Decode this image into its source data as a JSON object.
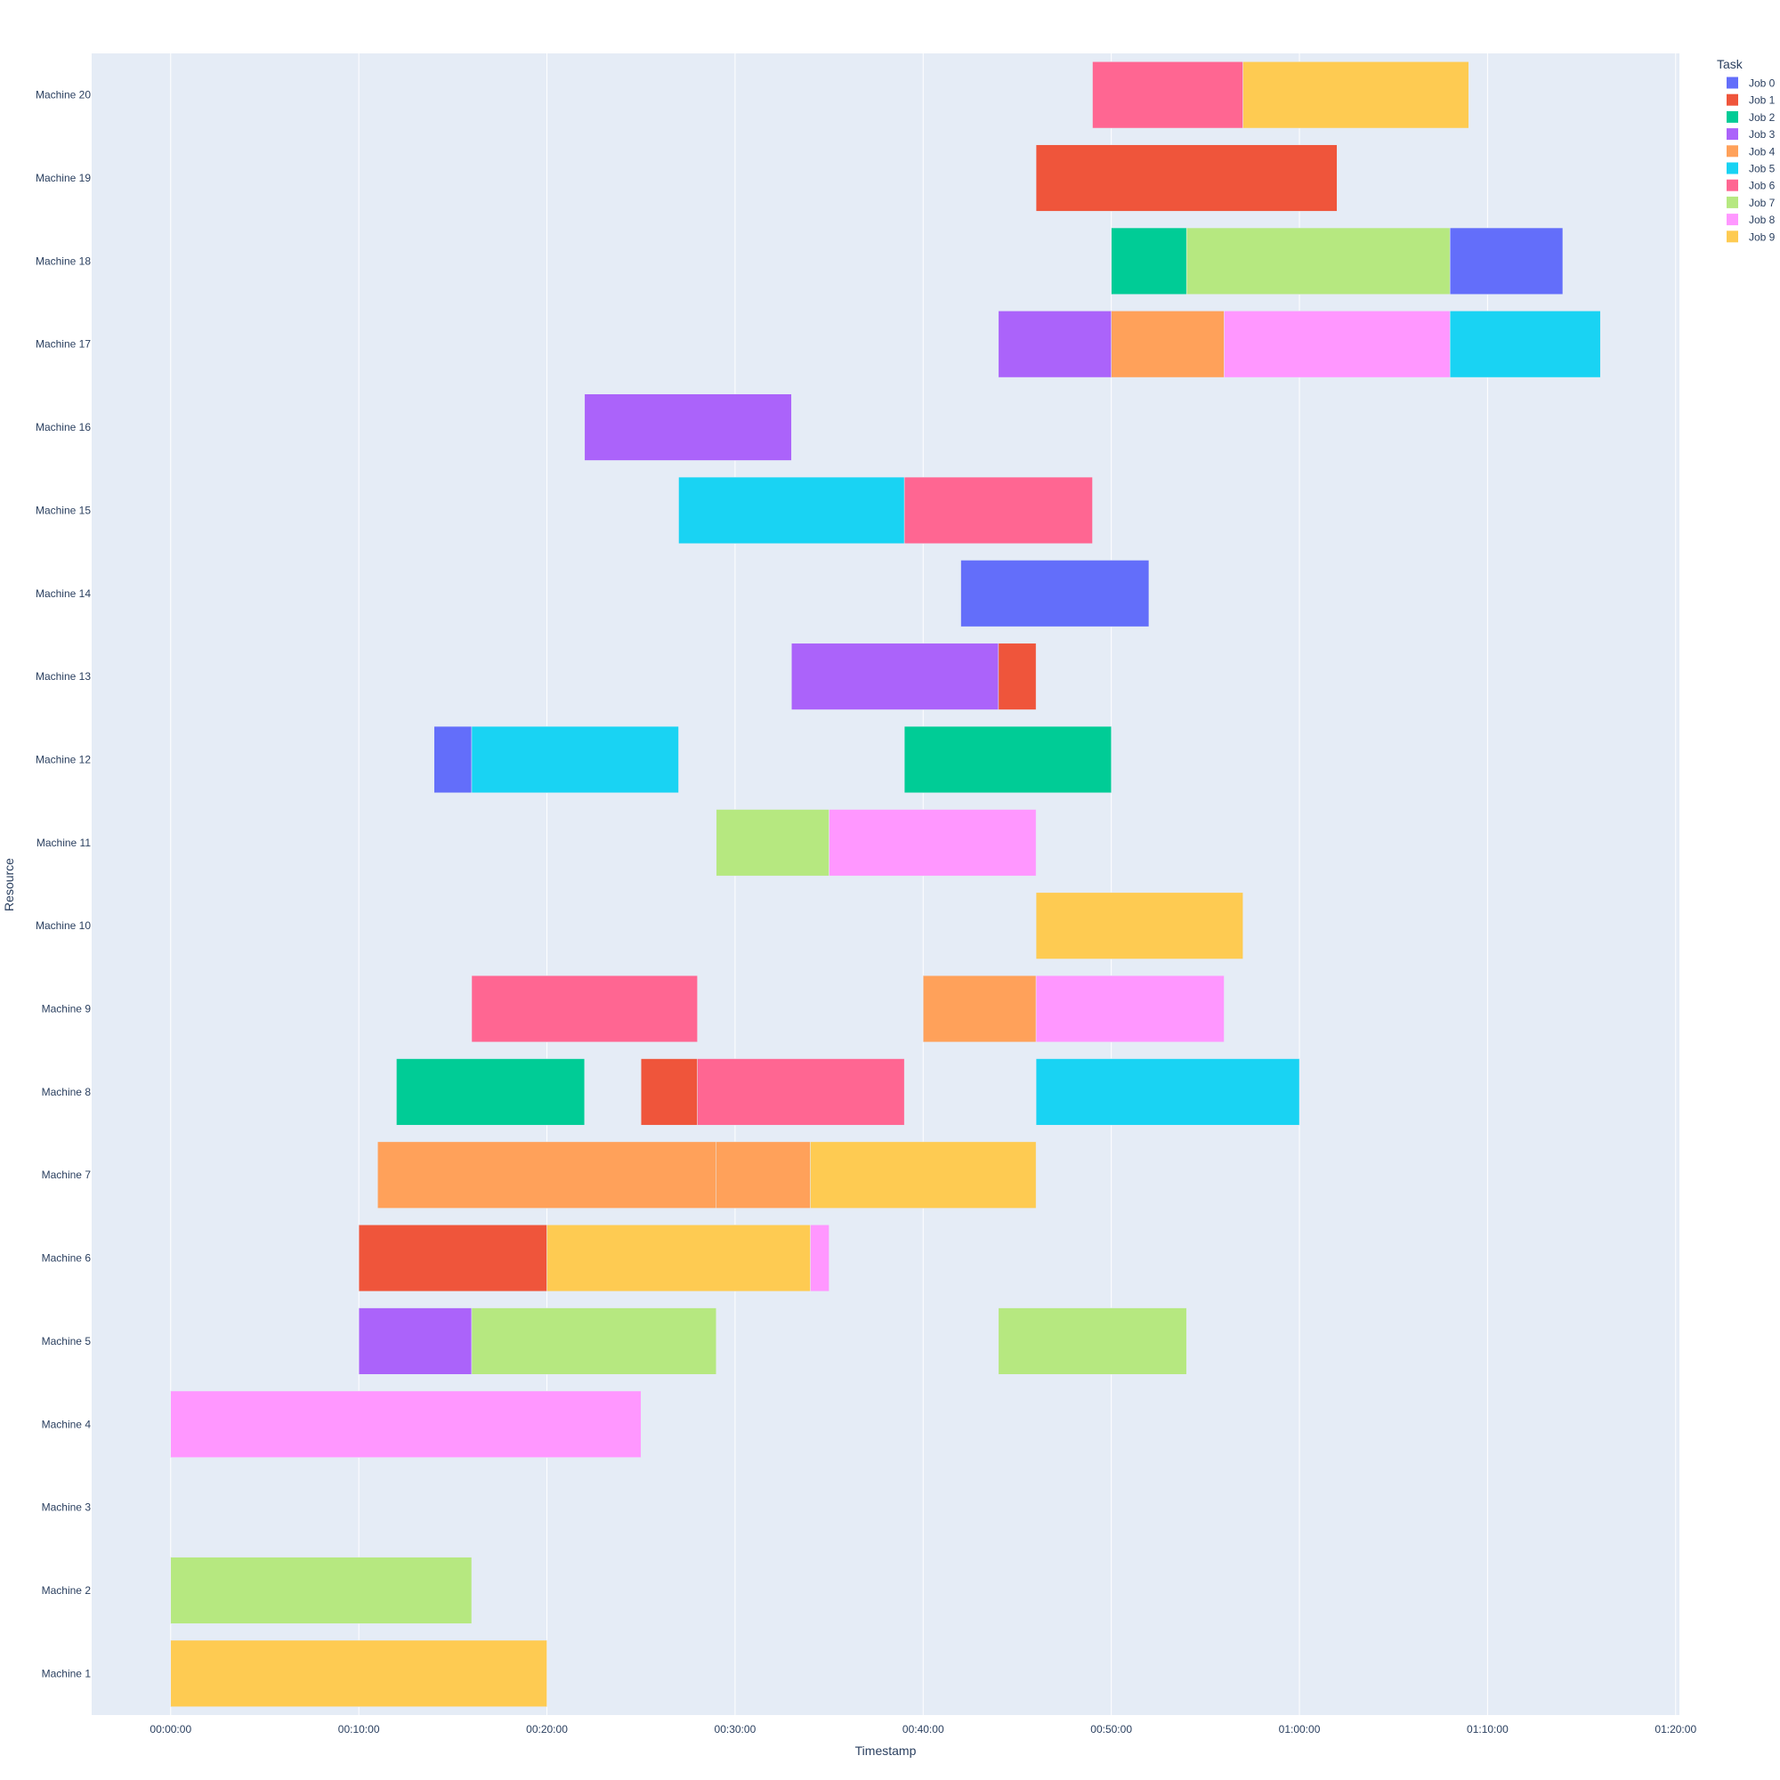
{
  "chart_data": {
    "type": "gantt",
    "xlabel": "Timestamp",
    "ylabel": "Resource",
    "x_unit": "minutes",
    "xlim": [
      -4.2,
      80.2
    ],
    "x_ticks": [
      {
        "value": 0,
        "label": "00:00:00"
      },
      {
        "value": 10,
        "label": "00:10:00"
      },
      {
        "value": 20,
        "label": "00:20:00"
      },
      {
        "value": 30,
        "label": "00:30:00"
      },
      {
        "value": 40,
        "label": "00:40:00"
      },
      {
        "value": 50,
        "label": "00:50:00"
      },
      {
        "value": 60,
        "label": "01:00:00"
      },
      {
        "value": 70,
        "label": "01:10:00"
      },
      {
        "value": 80,
        "label": "01:20:00"
      }
    ],
    "resources": [
      "Machine 20",
      "Machine 19",
      "Machine 18",
      "Machine 17",
      "Machine 16",
      "Machine 15",
      "Machine 14",
      "Machine 13",
      "Machine 12",
      "Machine 11",
      "Machine 10",
      "Machine 9",
      "Machine 8",
      "Machine 7",
      "Machine 6",
      "Machine 5",
      "Machine 4",
      "Machine 3",
      "Machine 2",
      "Machine 1"
    ],
    "legend_title": "Task",
    "legend_position": "top-right",
    "grid": true,
    "series": [
      {
        "name": "Job 0",
        "color": "#636efa",
        "tasks": [
          {
            "resource": "Machine 12",
            "start": 14,
            "end": 16
          },
          {
            "resource": "Machine 14",
            "start": 42,
            "end": 52
          },
          {
            "resource": "Machine 18",
            "start": 68,
            "end": 74
          }
        ]
      },
      {
        "name": "Job 1",
        "color": "#ef553b",
        "tasks": [
          {
            "resource": "Machine 6",
            "start": 10,
            "end": 20
          },
          {
            "resource": "Machine 8",
            "start": 25,
            "end": 28
          },
          {
            "resource": "Machine 13",
            "start": 44,
            "end": 46
          },
          {
            "resource": "Machine 19",
            "start": 46,
            "end": 62
          }
        ]
      },
      {
        "name": "Job 2",
        "color": "#00cc96",
        "tasks": [
          {
            "resource": "Machine 8",
            "start": 12,
            "end": 22
          },
          {
            "resource": "Machine 12",
            "start": 39,
            "end": 50
          },
          {
            "resource": "Machine 18",
            "start": 50,
            "end": 54
          }
        ]
      },
      {
        "name": "Job 3",
        "color": "#ab63fa",
        "tasks": [
          {
            "resource": "Machine 5",
            "start": 10,
            "end": 16
          },
          {
            "resource": "Machine 16",
            "start": 22,
            "end": 33
          },
          {
            "resource": "Machine 13",
            "start": 33,
            "end": 44
          },
          {
            "resource": "Machine 17",
            "start": 44,
            "end": 50
          }
        ]
      },
      {
        "name": "Job 4",
        "color": "#ffa15a",
        "tasks": [
          {
            "resource": "Machine 7",
            "start": 11,
            "end": 29
          },
          {
            "resource": "Machine 7",
            "start": 29,
            "end": 34
          },
          {
            "resource": "Machine 9",
            "start": 40,
            "end": 46
          },
          {
            "resource": "Machine 17",
            "start": 50,
            "end": 56
          }
        ]
      },
      {
        "name": "Job 5",
        "color": "#19d3f3",
        "tasks": [
          {
            "resource": "Machine 12",
            "start": 16,
            "end": 27
          },
          {
            "resource": "Machine 15",
            "start": 27,
            "end": 39
          },
          {
            "resource": "Machine 8",
            "start": 46,
            "end": 60
          },
          {
            "resource": "Machine 17",
            "start": 68,
            "end": 76
          }
        ]
      },
      {
        "name": "Job 6",
        "color": "#ff6692",
        "tasks": [
          {
            "resource": "Machine 9",
            "start": 16,
            "end": 28
          },
          {
            "resource": "Machine 8",
            "start": 28,
            "end": 39
          },
          {
            "resource": "Machine 15",
            "start": 39,
            "end": 49
          },
          {
            "resource": "Machine 20",
            "start": 49,
            "end": 57
          }
        ]
      },
      {
        "name": "Job 7",
        "color": "#b6e880",
        "tasks": [
          {
            "resource": "Machine 2",
            "start": 0,
            "end": 16
          },
          {
            "resource": "Machine 5",
            "start": 16,
            "end": 29
          },
          {
            "resource": "Machine 11",
            "start": 29,
            "end": 35
          },
          {
            "resource": "Machine 5",
            "start": 44,
            "end": 54
          },
          {
            "resource": "Machine 18",
            "start": 54,
            "end": 68
          }
        ]
      },
      {
        "name": "Job 8",
        "color": "#ff97ff",
        "tasks": [
          {
            "resource": "Machine 4",
            "start": 0,
            "end": 25
          },
          {
            "resource": "Machine 6",
            "start": 34,
            "end": 35
          },
          {
            "resource": "Machine 11",
            "start": 35,
            "end": 46
          },
          {
            "resource": "Machine 9",
            "start": 46,
            "end": 56
          },
          {
            "resource": "Machine 17",
            "start": 56,
            "end": 68
          }
        ]
      },
      {
        "name": "Job 9",
        "color": "#fecb52",
        "tasks": [
          {
            "resource": "Machine 1",
            "start": 0,
            "end": 20
          },
          {
            "resource": "Machine 6",
            "start": 20,
            "end": 34
          },
          {
            "resource": "Machine 7",
            "start": 34,
            "end": 46
          },
          {
            "resource": "Machine 10",
            "start": 46,
            "end": 57
          },
          {
            "resource": "Machine 20",
            "start": 57,
            "end": 69
          }
        ]
      }
    ]
  }
}
